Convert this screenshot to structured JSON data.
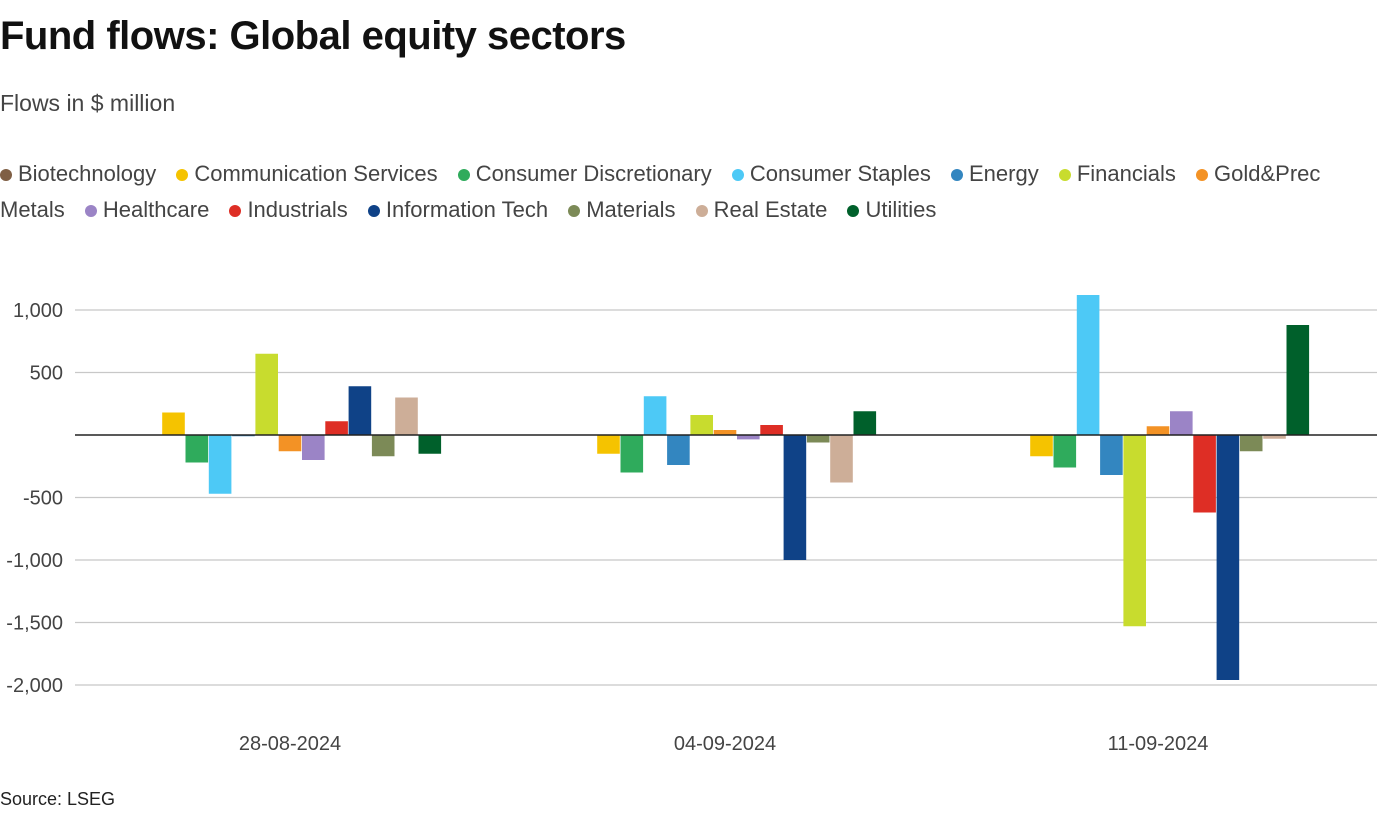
{
  "title": "Fund flows: Global equity sectors",
  "subtitle": "Flows in $ million",
  "source": "Source: LSEG",
  "chart_data": {
    "type": "bar",
    "title": "Fund flows: Global equity sectors",
    "subtitle": "Flows in $ million",
    "xlabel": "",
    "ylabel": "",
    "ylim": [
      -2000,
      1000
    ],
    "yticks": [
      1000,
      500,
      0,
      -500,
      -1000,
      -1500,
      -2000
    ],
    "ytick_labels": [
      "1,000",
      "500",
      "",
      "-500",
      "-1,000",
      "-1,500",
      "-2,000"
    ],
    "grid": true,
    "legend_position": "top",
    "categories": [
      "28-08-2024",
      "04-09-2024",
      "11-09-2024"
    ],
    "series": [
      {
        "name": "Biotechnology",
        "color": "#7f5f45",
        "values": [
          0,
          0,
          0
        ]
      },
      {
        "name": "Communication Services",
        "color": "#f5c300",
        "values": [
          180,
          -150,
          -170
        ]
      },
      {
        "name": "Consumer Discretionary",
        "color": "#2fab5c",
        "values": [
          -220,
          -300,
          -260
        ]
      },
      {
        "name": "Consumer Staples",
        "color": "#4dc9f6",
        "values": [
          -470,
          310,
          1120
        ]
      },
      {
        "name": "Energy",
        "color": "#3386c0",
        "values": [
          -10,
          -240,
          -320
        ]
      },
      {
        "name": "Financials",
        "color": "#c8dc2e",
        "values": [
          650,
          160,
          -1530
        ]
      },
      {
        "name": "Gold&Prec Metals",
        "color": "#f39225",
        "values": [
          -130,
          40,
          70
        ]
      },
      {
        "name": "Healthcare",
        "color": "#9b84c6",
        "values": [
          -200,
          -35,
          190
        ]
      },
      {
        "name": "Industrials",
        "color": "#de2e25",
        "values": [
          110,
          80,
          -620
        ]
      },
      {
        "name": "Information Tech",
        "color": "#0f4287",
        "values": [
          390,
          -1000,
          -1960
        ]
      },
      {
        "name": "Materials",
        "color": "#7c8a57",
        "values": [
          -170,
          -60,
          -130
        ]
      },
      {
        "name": "Real Estate",
        "color": "#cdae98",
        "values": [
          300,
          -380,
          -30
        ]
      },
      {
        "name": "Utilities",
        "color": "#00602b",
        "values": [
          -150,
          190,
          880
        ]
      }
    ]
  }
}
